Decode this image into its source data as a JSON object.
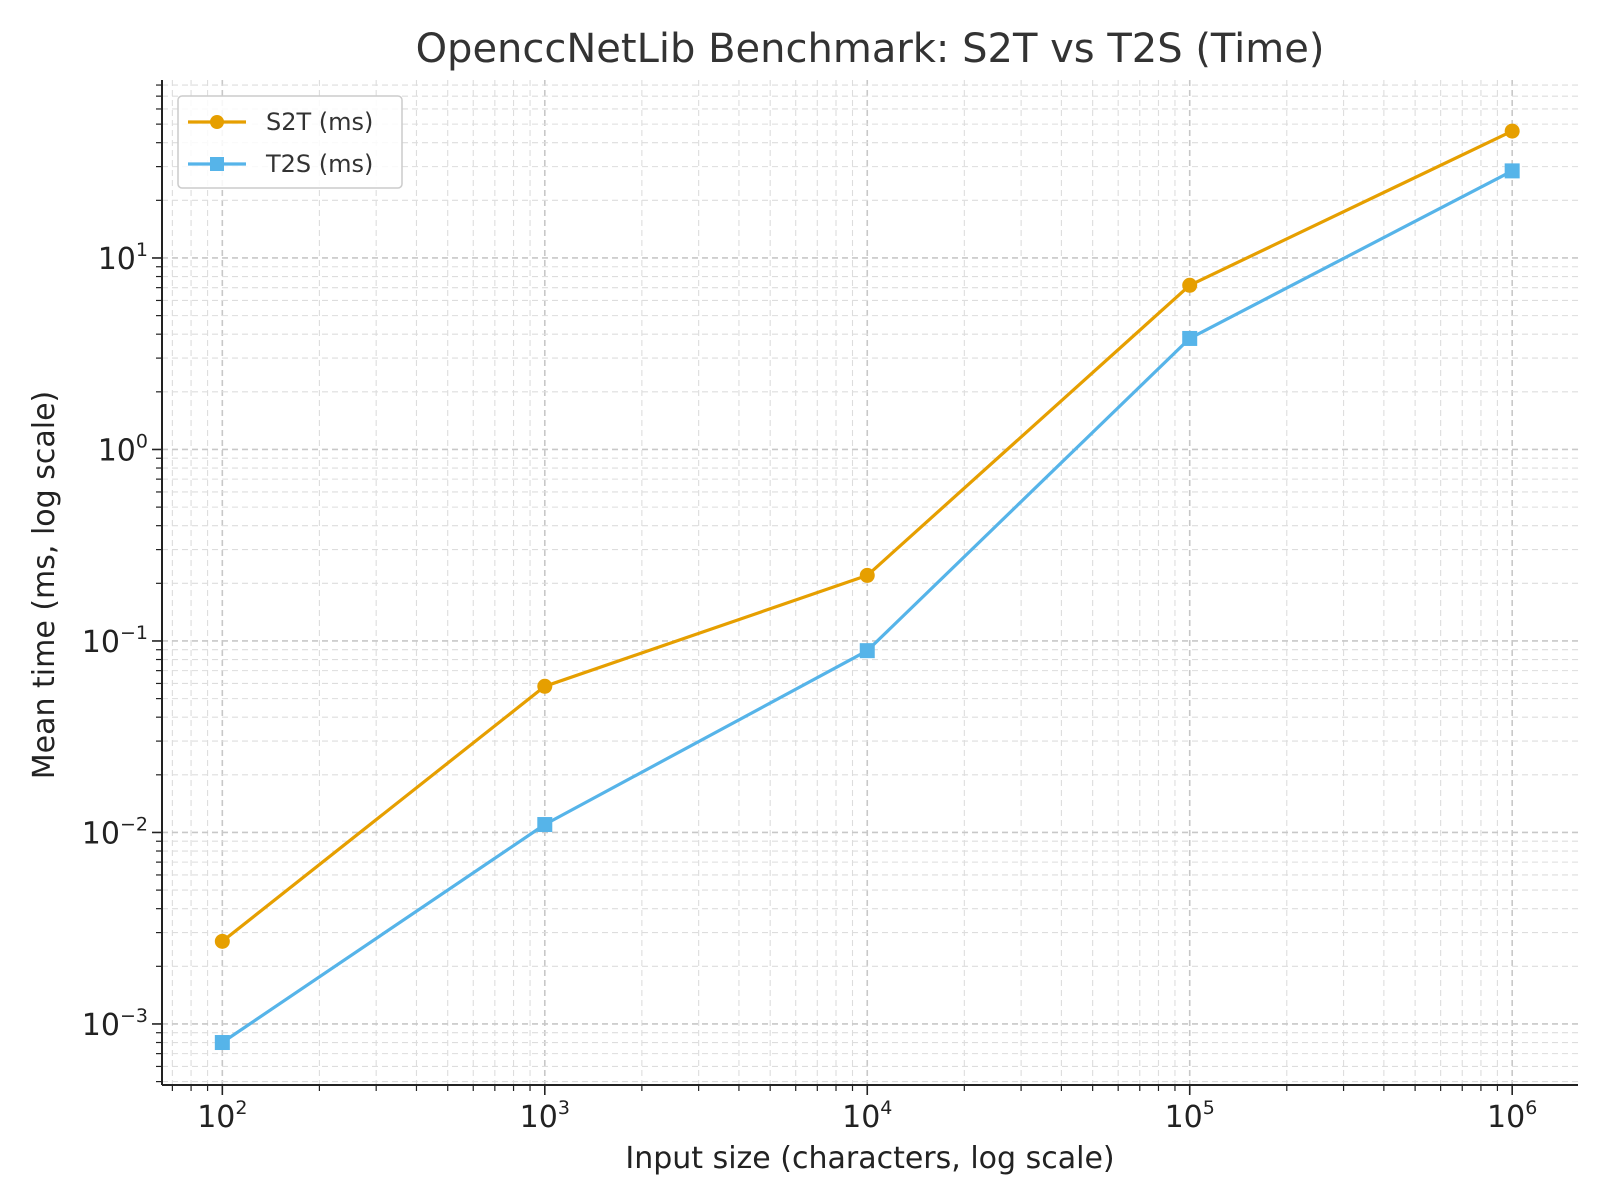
{
  "chart_data": {
    "type": "line",
    "title": "OpenccNetLib Benchmark: S2T vs T2S (Time)",
    "xlabel": "Input size (characters, log scale)",
    "ylabel": "Mean time (ms, log scale)",
    "xscale": "log",
    "yscale": "log",
    "x": [
      100,
      1000,
      10000,
      100000,
      1000000
    ],
    "xlim": [
      65,
      1600000
    ],
    "ylim": [
      0.00048,
      85
    ],
    "grid": "major-and-minor, dashed",
    "legend_position": "top-left",
    "x_ticks": [
      {
        "base": "10",
        "exp": "2"
      },
      {
        "base": "10",
        "exp": "3"
      },
      {
        "base": "10",
        "exp": "4"
      },
      {
        "base": "10",
        "exp": "5"
      },
      {
        "base": "10",
        "exp": "6"
      }
    ],
    "y_ticks": [
      {
        "base": "10",
        "exp": "−3"
      },
      {
        "base": "10",
        "exp": "−2"
      },
      {
        "base": "10",
        "exp": "−1"
      },
      {
        "base": "10",
        "exp": "0"
      },
      {
        "base": "10",
        "exp": "1"
      }
    ],
    "series": [
      {
        "name": "S2T (ms)",
        "color": "#E69F00",
        "marker": "circle",
        "values": [
          0.0027,
          0.058,
          0.22,
          7.2,
          46
        ]
      },
      {
        "name": "T2S (ms)",
        "color": "#56B4E9",
        "marker": "square",
        "values": [
          0.0008,
          0.011,
          0.089,
          3.8,
          28.5
        ]
      }
    ]
  }
}
